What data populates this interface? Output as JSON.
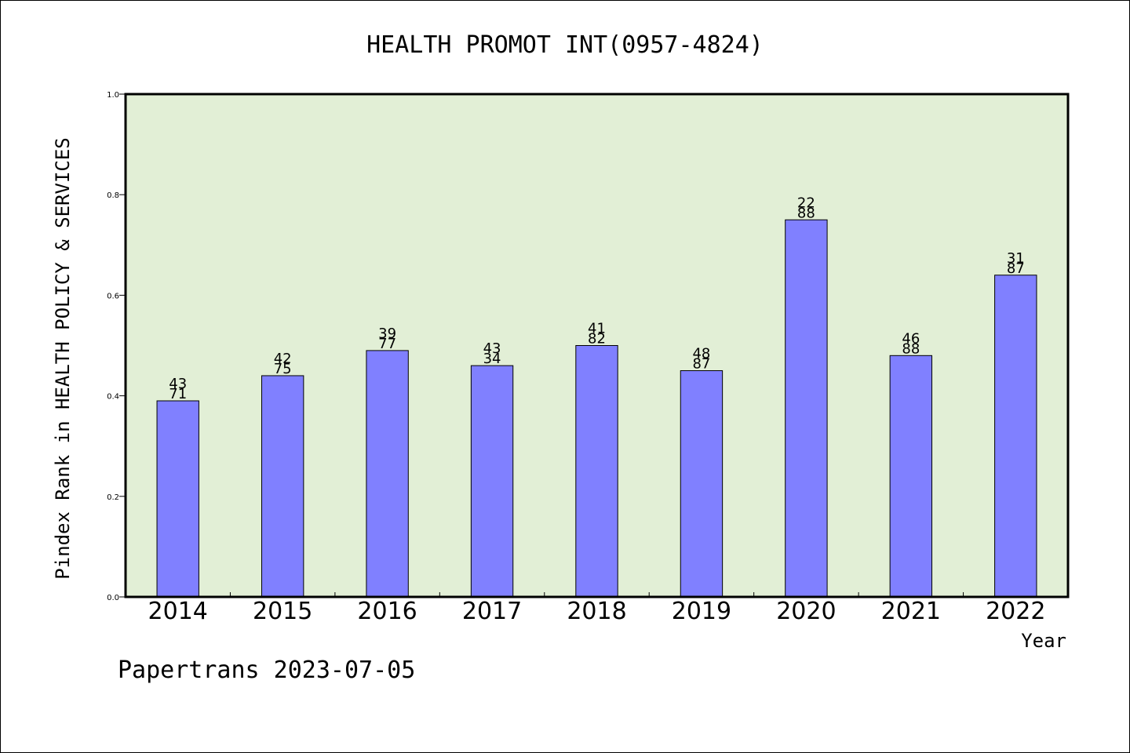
{
  "chart_data": {
    "type": "bar",
    "title": "HEALTH PROMOT INT(0957-4824)",
    "xlabel": "Year",
    "ylabel": "Pindex Rank in HEALTH POLICY & SERVICES",
    "footer": "Papertrans 2023-07-05",
    "categories": [
      "2014",
      "2015",
      "2016",
      "2017",
      "2018",
      "2019",
      "2020",
      "2021",
      "2022"
    ],
    "values": [
      0.39,
      0.44,
      0.49,
      0.46,
      0.5,
      0.45,
      0.75,
      0.48,
      0.64
    ],
    "rank": [
      "43",
      "42",
      "39",
      "43",
      "41",
      "48",
      "22",
      "46",
      "31"
    ],
    "total": [
      "71",
      "75",
      "77",
      "34",
      "82",
      "87",
      "88",
      "88",
      "87"
    ],
    "ylim": [
      0,
      1.0
    ],
    "yticks": [
      "0.0",
      "0.2",
      "0.4",
      "0.6",
      "0.8",
      "1.0"
    ],
    "grid": false,
    "colors": {
      "plot_background": "#e2efd6",
      "bar_fill": "#8080ff",
      "bar_stroke": "#000000",
      "axis": "#000000"
    }
  }
}
